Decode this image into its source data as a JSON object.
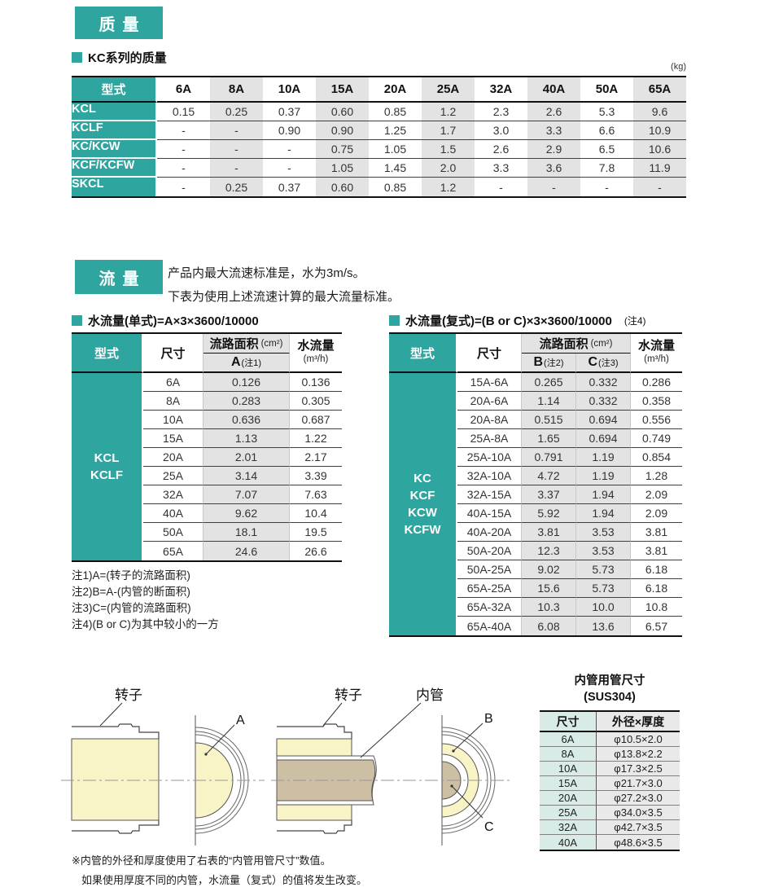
{
  "colors": {
    "teal": "#2fa5a0",
    "light_teal": "#d8ebe7",
    "column_gray": "#e3e3e3",
    "rotor_yellow": "#f9f4c6",
    "pipe_tan": "#cdbfa3"
  },
  "mass": {
    "badge": "质量",
    "heading": "KC系列的质量",
    "unit": "(kg)",
    "model_header": "型式",
    "columns": [
      "6A",
      "8A",
      "10A",
      "15A",
      "20A",
      "25A",
      "32A",
      "40A",
      "50A",
      "65A"
    ],
    "rows": [
      [
        "KCL",
        "0.15",
        "0.25",
        "0.37",
        "0.60",
        "0.85",
        "1.2",
        "2.3",
        "2.6",
        "5.3",
        "9.6"
      ],
      [
        "KCLF",
        "-",
        "-",
        "0.90",
        "0.90",
        "1.25",
        "1.7",
        "3.0",
        "3.3",
        "6.6",
        "10.9"
      ],
      [
        "KC/KCW",
        "-",
        "-",
        "-",
        "0.75",
        "1.05",
        "1.5",
        "2.6",
        "2.9",
        "6.5",
        "10.6"
      ],
      [
        "KCF/KCFW",
        "-",
        "-",
        "-",
        "1.05",
        "1.45",
        "2.0",
        "3.3",
        "3.6",
        "7.8",
        "11.9"
      ],
      [
        "SKCL",
        "-",
        "0.25",
        "0.37",
        "0.60",
        "0.85",
        "1.2",
        "-",
        "-",
        "-",
        "-"
      ]
    ]
  },
  "flow": {
    "badge": "流量",
    "desc1": "产品内最大流速标准是，水为3m/s。",
    "desc2": "下表为使用上述流速计算的最大流量标准。",
    "single": {
      "formula": "水流量(单式)=A×3×3600/10000",
      "model_header": "型式",
      "size_header": "尺寸",
      "area_header": "流路面积",
      "area_unit": "(cm²)",
      "sub_a": "A",
      "sub_a_note": "(注1)",
      "flow_header": "水流量",
      "flow_unit": "(m³/h)",
      "models": [
        "KCL",
        "KCLF"
      ],
      "rows": [
        [
          "6A",
          "0.126",
          "0.136"
        ],
        [
          "8A",
          "0.283",
          "0.305"
        ],
        [
          "10A",
          "0.636",
          "0.687"
        ],
        [
          "15A",
          "1.13",
          "1.22"
        ],
        [
          "20A",
          "2.01",
          "2.17"
        ],
        [
          "25A",
          "3.14",
          "3.39"
        ],
        [
          "32A",
          "7.07",
          "7.63"
        ],
        [
          "40A",
          "9.62",
          "10.4"
        ],
        [
          "50A",
          "18.1",
          "19.5"
        ],
        [
          "65A",
          "24.6",
          "26.6"
        ]
      ]
    },
    "double": {
      "formula": "水流量(复式)=(B or C)×3×3600/10000",
      "formula_note": "(注4)",
      "model_header": "型式",
      "size_header": "尺寸",
      "area_header": "流路面积",
      "area_unit": "(cm²)",
      "sub_b": "B",
      "sub_b_note": "(注2)",
      "sub_c": "C",
      "sub_c_note": "(注3)",
      "flow_header": "水流量",
      "flow_unit": "(m³/h)",
      "models": [
        "KC",
        "KCF",
        "KCW",
        "KCFW"
      ],
      "rows": [
        [
          "15A-6A",
          "0.265",
          "0.332",
          "0.286"
        ],
        [
          "20A-6A",
          "1.14",
          "0.332",
          "0.358"
        ],
        [
          "20A-8A",
          "0.515",
          "0.694",
          "0.556"
        ],
        [
          "25A-8A",
          "1.65",
          "0.694",
          "0.749"
        ],
        [
          "25A-10A",
          "0.791",
          "1.19",
          "0.854"
        ],
        [
          "32A-10A",
          "4.72",
          "1.19",
          "1.28"
        ],
        [
          "32A-15A",
          "3.37",
          "1.94",
          "2.09"
        ],
        [
          "40A-15A",
          "5.92",
          "1.94",
          "2.09"
        ],
        [
          "40A-20A",
          "3.81",
          "3.53",
          "3.81"
        ],
        [
          "50A-20A",
          "12.3",
          "3.53",
          "3.81"
        ],
        [
          "50A-25A",
          "9.02",
          "5.73",
          "6.18"
        ],
        [
          "65A-25A",
          "15.6",
          "5.73",
          "6.18"
        ],
        [
          "65A-32A",
          "10.3",
          "10.0",
          "10.8"
        ],
        [
          "65A-40A",
          "6.08",
          "13.6",
          "6.57"
        ]
      ]
    },
    "notes": [
      "注1)A=(转子的流路面积)",
      "注2)B=A-(内管的断面积)",
      "注3)C=(内管的流路面积)",
      "注4)(B or C)为其中较小的一方"
    ]
  },
  "diagram": {
    "rotor_label": "转子",
    "inner_pipe_label": "内管",
    "label_a": "A",
    "label_b": "B",
    "label_c": "C",
    "pipe_table": {
      "title": "内管用管尺寸",
      "subtitle": "(SUS304)",
      "size_header": "尺寸",
      "od_header": "外径×厚度",
      "rows": [
        [
          "6A",
          "φ10.5×2.0"
        ],
        [
          "8A",
          "φ13.8×2.2"
        ],
        [
          "10A",
          "φ17.3×2.5"
        ],
        [
          "15A",
          "φ21.7×3.0"
        ],
        [
          "20A",
          "φ27.2×3.0"
        ],
        [
          "25A",
          "φ34.0×3.5"
        ],
        [
          "32A",
          "φ42.7×3.5"
        ],
        [
          "40A",
          "φ48.6×3.5"
        ]
      ]
    },
    "footnote1": "※内管的外径和厚度使用了右表的“内管用管尺寸”数值。",
    "footnote2": "如果使用厚度不同的内管，水流量（复式）的值将发生改变。"
  }
}
